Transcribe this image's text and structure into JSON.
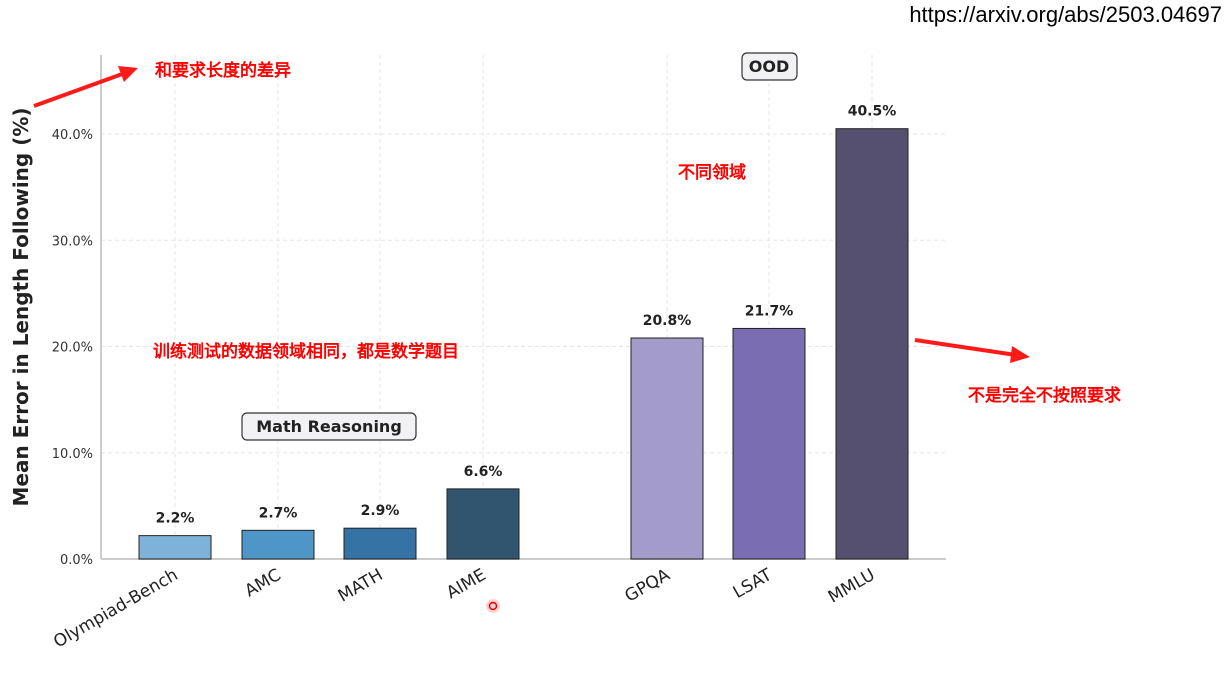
{
  "source_url": "https://arxiv.org/abs/2503.04697",
  "chart_data": {
    "type": "bar",
    "title": "",
    "xlabel": "",
    "ylabel": "Mean Error in Length Following (%)",
    "ylim": [
      0,
      44
    ],
    "yticks": [
      "0.0%",
      "10.0%",
      "20.0%",
      "30.0%",
      "40.0%"
    ],
    "ytick_values": [
      0,
      10,
      20,
      30,
      40
    ],
    "grid": true,
    "categories": [
      "Olympiad-Bench",
      "AMC",
      "MATH",
      "AIME",
      "GPQA",
      "LSAT",
      "MMLU"
    ],
    "values": [
      2.2,
      2.7,
      2.9,
      6.6,
      20.8,
      21.7,
      40.5
    ],
    "value_labels": [
      "2.2%",
      "2.7%",
      "2.9%",
      "6.6%",
      "20.8%",
      "21.7%",
      "40.5%"
    ],
    "colors": [
      "#7fb2d8",
      "#4f96c8",
      "#3673a5",
      "#31556e",
      "#a39ccb",
      "#7a6db2",
      "#55506f"
    ],
    "groups": [
      {
        "label": "Math Reasoning",
        "members": [
          "Olympiad-Bench",
          "AMC",
          "MATH",
          "AIME"
        ]
      },
      {
        "label": "OOD",
        "members": [
          "GPQA",
          "LSAT",
          "MMLU"
        ]
      }
    ]
  },
  "annotations": {
    "ylabel_note": "和要求长度的差异",
    "math_note": "训练测试的数据领域相同，都是数学题目",
    "ood_note": "不同领域",
    "mmlu_note": "不是完全不按照要求",
    "accent_color": "#ff0000"
  }
}
